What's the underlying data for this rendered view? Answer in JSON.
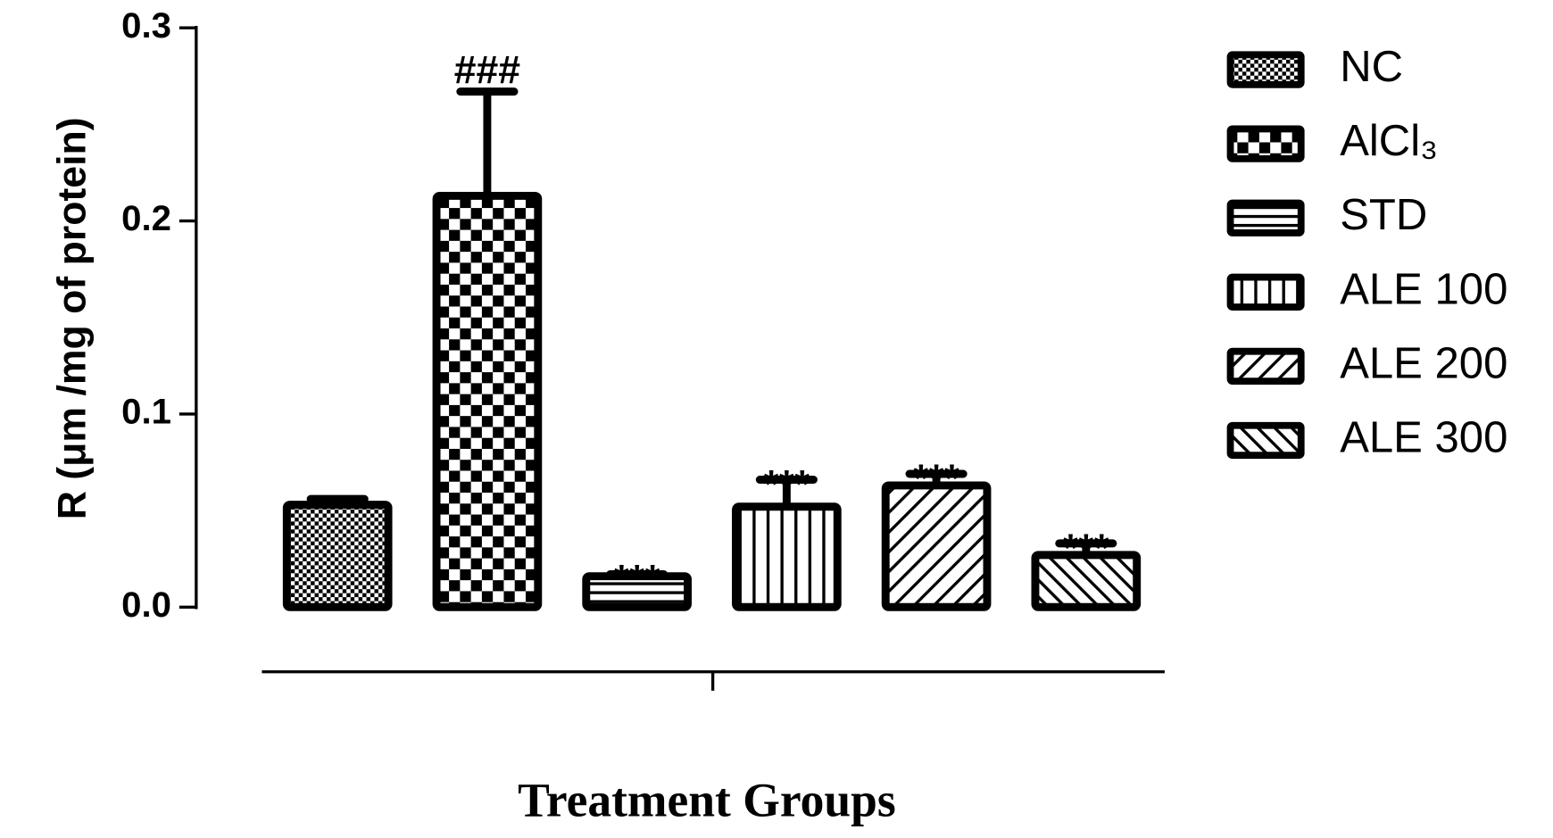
{
  "chart_data": {
    "type": "bar",
    "y_label": "R (μm /mg of protein)",
    "x_label": "Treatment Groups",
    "categories": [
      "NC",
      "AlCl₃",
      "STD",
      "ALE 100",
      "ALE 200",
      "ALE 300"
    ],
    "values": [
      0.053,
      0.213,
      0.016,
      0.052,
      0.063,
      0.027
    ],
    "errors": [
      0.003,
      0.054,
      0.001,
      0.014,
      0.006,
      0.006
    ],
    "annotations": [
      null,
      "###",
      "***",
      "***",
      "***",
      "***"
    ],
    "color": "#000000",
    "ylim": [
      0,
      0.3
    ],
    "yticks": [
      {
        "value": 0,
        "label": "0.0"
      },
      0.1,
      0.2,
      0.3
    ]
  }
}
